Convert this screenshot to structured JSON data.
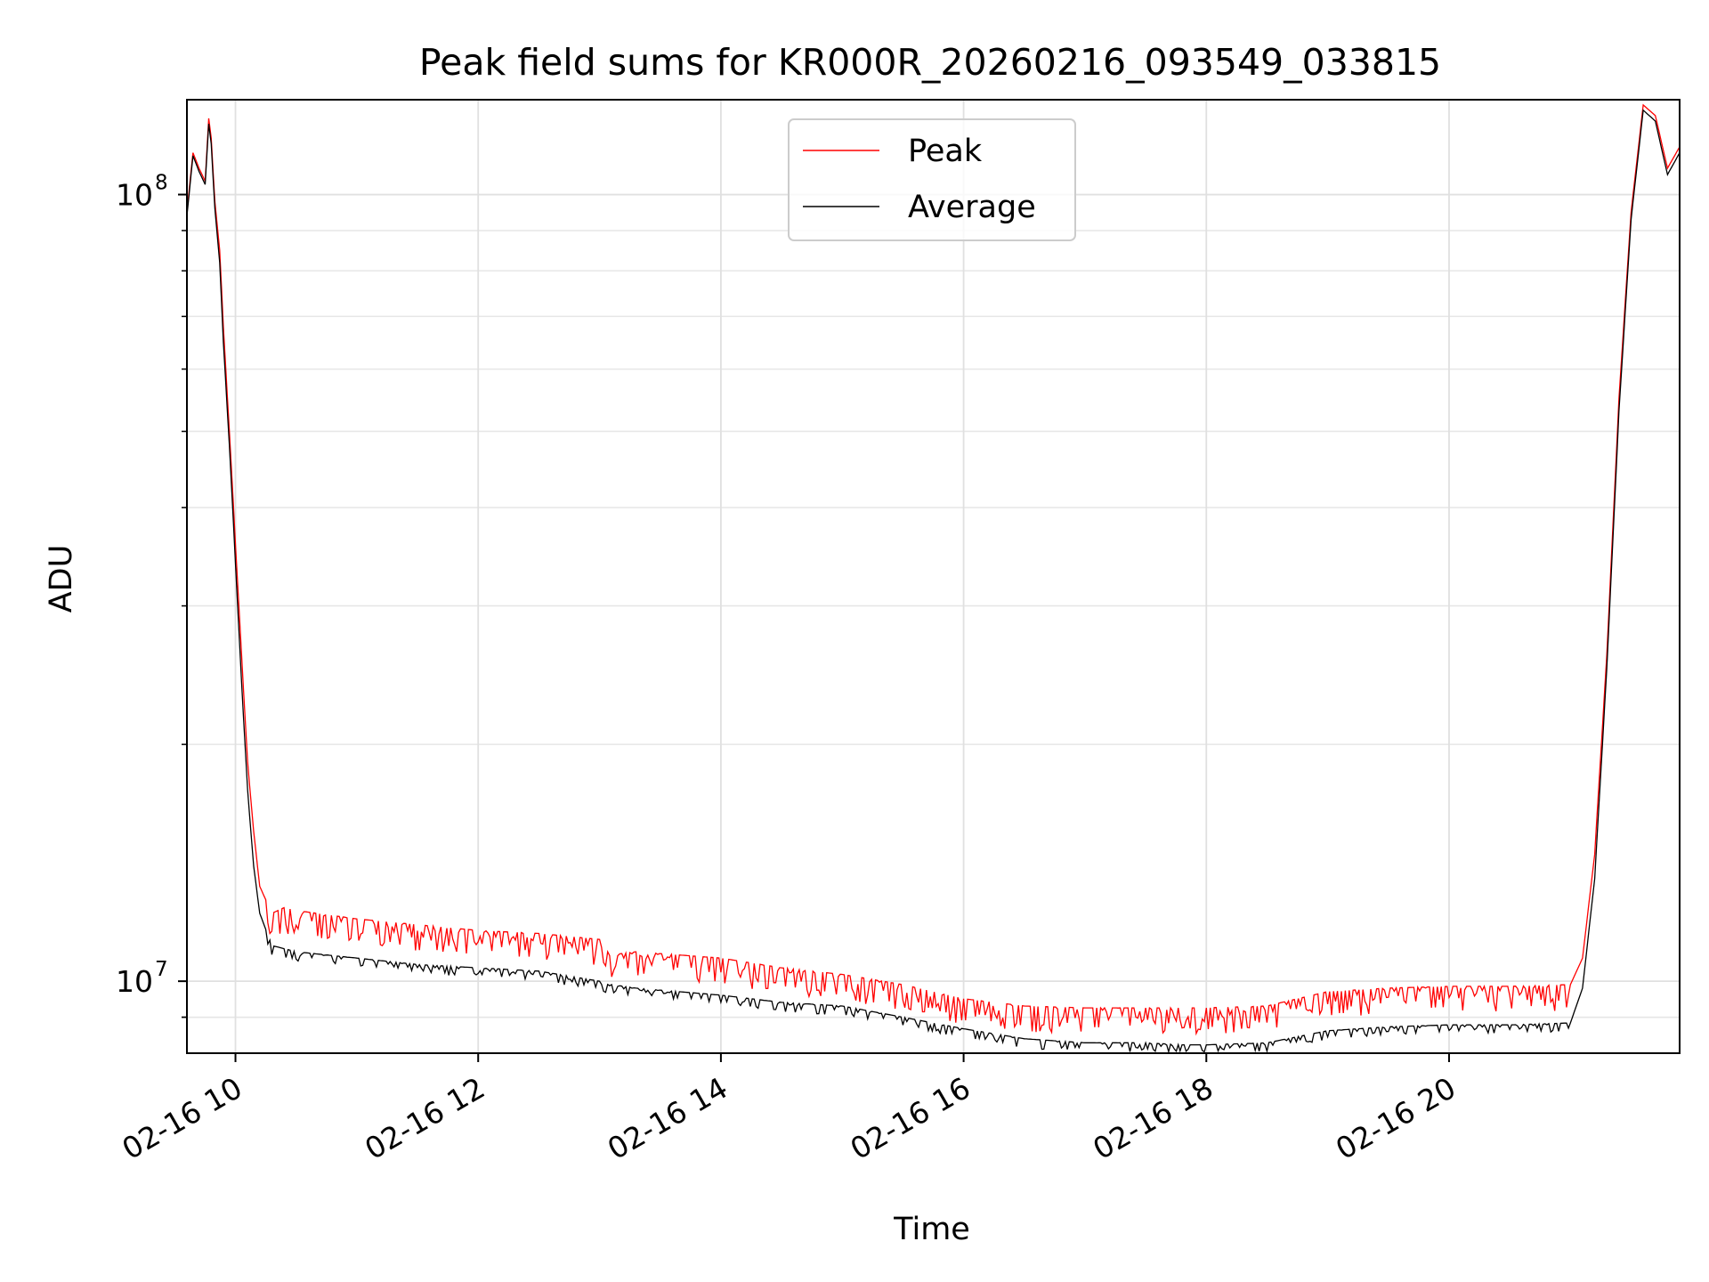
{
  "chart_data": {
    "type": "line",
    "title": "Peak field sums for KR000R_20260216_093549_033815",
    "xlabel": "Time",
    "ylabel": "ADU",
    "yscale": "log",
    "xlim": [
      9.6,
      21.9
    ],
    "ylim": [
      8100000,
      132000000
    ],
    "grid": true,
    "legend_location": "upper center",
    "x_ticks": [
      {
        "value": 10,
        "label": "02-16 10"
      },
      {
        "value": 12,
        "label": "02-16 12"
      },
      {
        "value": 14,
        "label": "02-16 14"
      },
      {
        "value": 16,
        "label": "02-16 16"
      },
      {
        "value": 18,
        "label": "02-16 18"
      },
      {
        "value": 20,
        "label": "02-16 20"
      }
    ],
    "y_ticks": [
      {
        "value": 10000000,
        "base": "10",
        "exp": "7"
      },
      {
        "value": 100000000,
        "base": "10",
        "exp": "8"
      }
    ],
    "series": [
      {
        "name": "Peak",
        "color": "#ff0000",
        "x": [
          9.6,
          9.65,
          9.7,
          9.75,
          9.78,
          9.8,
          9.83,
          9.87,
          9.9,
          9.95,
          10.0,
          10.05,
          10.1,
          10.15,
          10.2,
          10.3,
          10.4,
          10.5,
          11.0,
          11.5,
          12.0,
          12.5,
          13.0,
          13.1,
          13.3,
          14.0,
          14.5,
          15.0,
          15.5,
          16.0,
          16.5,
          17.0,
          17.5,
          17.8,
          18.0,
          18.5,
          19.0,
          19.5,
          20.0,
          20.5,
          21.0,
          21.1,
          21.2,
          21.3,
          21.4,
          21.5,
          21.6,
          21.7,
          21.8,
          21.9
        ],
        "values": [
          95000000,
          113000000,
          108000000,
          104000000,
          125000000,
          118000000,
          98000000,
          85000000,
          68000000,
          50000000,
          36000000,
          26000000,
          19000000,
          15500000,
          13200000,
          12200000,
          12400000,
          12300000,
          12000000,
          11800000,
          11600000,
          11500000,
          11300000,
          10800000,
          10900000,
          10700000,
          10400000,
          10200000,
          9900000,
          9500000,
          9300000,
          9250000,
          9250000,
          9250000,
          9250000,
          9300000,
          9700000,
          9800000,
          9850000,
          9850000,
          9900000,
          10700000,
          14500000,
          26000000,
          55000000,
          95000000,
          130000000,
          126000000,
          108000000,
          115000000
        ]
      },
      {
        "name": "Average",
        "color": "#000000",
        "x": [
          9.6,
          9.65,
          9.7,
          9.75,
          9.78,
          9.8,
          9.83,
          9.87,
          9.9,
          9.95,
          10.0,
          10.05,
          10.1,
          10.15,
          10.2,
          10.3,
          10.4,
          10.5,
          11.0,
          11.5,
          12.0,
          12.5,
          13.0,
          13.1,
          13.3,
          14.0,
          14.5,
          15.0,
          15.5,
          16.0,
          16.5,
          17.0,
          17.5,
          17.8,
          18.0,
          18.5,
          19.0,
          19.5,
          20.0,
          20.5,
          21.0,
          21.1,
          21.2,
          21.3,
          21.4,
          21.5,
          21.6,
          21.7,
          21.8,
          21.9
        ],
        "values": [
          94000000,
          112000000,
          107000000,
          103000000,
          123000000,
          116000000,
          96000000,
          82000000,
          65000000,
          48000000,
          34000000,
          24000000,
          17500000,
          14000000,
          12200000,
          11100000,
          11000000,
          10900000,
          10700000,
          10500000,
          10400000,
          10300000,
          10000000,
          9900000,
          9800000,
          9600000,
          9400000,
          9300000,
          9000000,
          8700000,
          8450000,
          8350000,
          8350000,
          8300000,
          8300000,
          8350000,
          8650000,
          8750000,
          8800000,
          8800000,
          8850000,
          9800000,
          13500000,
          25000000,
          53000000,
          93000000,
          128000000,
          124000000,
          106000000,
          113000000
        ]
      }
    ]
  }
}
